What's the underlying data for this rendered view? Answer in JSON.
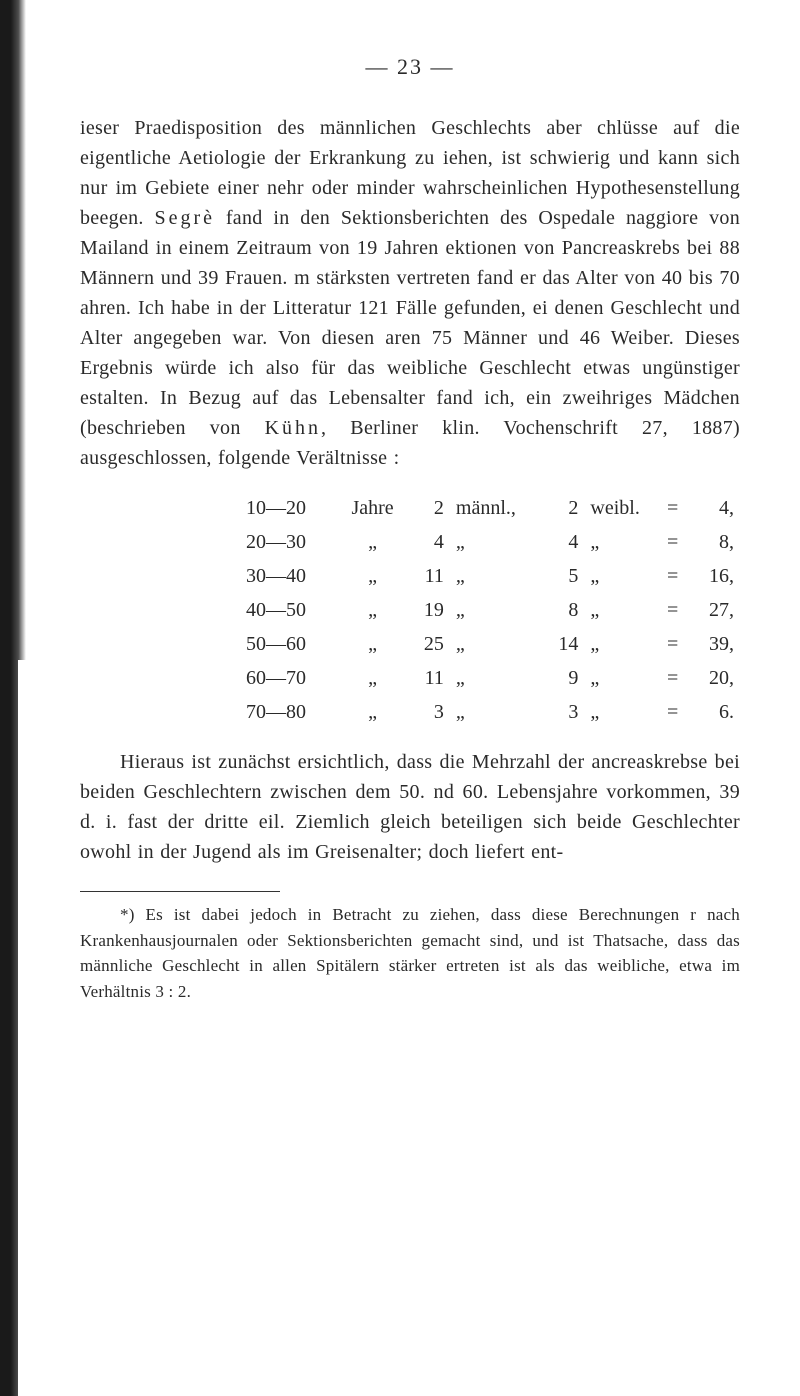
{
  "page_number_line": "— 23 —",
  "para1_a": "ieser Praedisposition des männlichen Geschlechts aber chlüsse auf die eigentliche Aetiologie der Erkrankung zu iehen, ist schwierig und kann sich nur im Gebiete einer nehr oder minder wahrscheinlichen Hypothesenstellung be­egen. ",
  "para1_segre": "Segrè",
  "para1_b": " fand in den Sektionsberichten des Ospedale naggiore von Mailand in einem Zeitraum von 19 Jahren ektionen von Pancreaskrebs bei 88 Männern und 39 Frauen. m stärksten vertreten fand er das Alter von 40 bis 70 ahren. Ich habe in der Litteratur 121 Fälle gefunden, ei denen Geschlecht und Alter angegeben war. Von diesen aren 75 Männer und 46 Weiber. Dieses Ergebnis würde ich also für das weibliche Geschlecht etwas ungünstiger estalten. In Bezug auf das Lebensalter fand ich, ein zwei­hriges Mädchen (beschrieben von ",
  "para1_kuhn": "Kühn",
  "para1_c": ", Berliner klin. Vochenschrift 27, 1887) ausgeschlossen, folgende Ver­ältnisse :",
  "table": {
    "rows": [
      {
        "range": "10—20",
        "unit": "Jahre",
        "m": "2",
        "mlabel": "männl.,",
        "w": "2",
        "wlabel": "weibl.",
        "eq": "=",
        "v": "4,"
      },
      {
        "range": "20—30",
        "unit": "„",
        "m": "4",
        "mlabel": "„",
        "w": "4",
        "wlabel": "„",
        "eq": "=",
        "v": "8,"
      },
      {
        "range": "30—40",
        "unit": "„",
        "m": "11",
        "mlabel": "„",
        "w": "5",
        "wlabel": "„",
        "eq": "=",
        "v": "16,"
      },
      {
        "range": "40—50",
        "unit": "„",
        "m": "19",
        "mlabel": "„",
        "w": "8",
        "wlabel": "„",
        "eq": "=",
        "v": "27,"
      },
      {
        "range": "50—60",
        "unit": "„",
        "m": "25",
        "mlabel": "„",
        "w": "14",
        "wlabel": "„",
        "eq": "=",
        "v": "39,"
      },
      {
        "range": "60—70",
        "unit": "„",
        "m": "11",
        "mlabel": "„",
        "w": "9",
        "wlabel": "„",
        "eq": "=",
        "v": "20,"
      },
      {
        "range": "70—80",
        "unit": "„",
        "m": "3",
        "mlabel": "„",
        "w": "3",
        "wlabel": "„",
        "eq": "=",
        "v": "6."
      }
    ]
  },
  "para2": "Hieraus ist zunächst ersichtlich, dass die Mehrzahl der ancreaskrebse bei beiden Geschlechtern zwischen dem 50. nd 60. Lebensjahre vorkommen, 39 d. i. fast der dritte eil. Ziemlich gleich beteiligen sich beide Geschlechter owohl in der Jugend als im Greisenalter; doch liefert ent-",
  "footnote": "*) Es ist dabei jedoch in Betracht zu ziehen, dass diese Berechnungen r nach Krankenhausjournalen oder Sektionsberichten gemacht sind, und  ist Thatsache, dass das männliche Geschlecht in allen Spitälern stärker ertreten ist als das weibliche, etwa im Verhältnis 3 : 2."
}
